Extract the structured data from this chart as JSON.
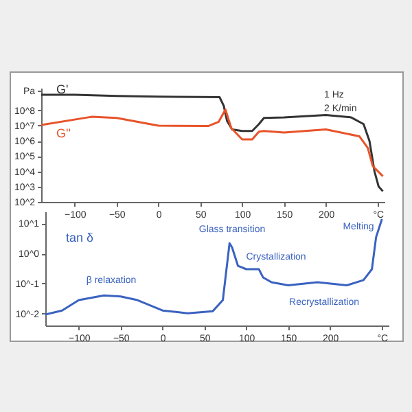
{
  "chart_data": [
    {
      "type": "line",
      "log": "y",
      "grid": false,
      "xlim": [
        -140,
        270
      ],
      "xticks": [
        -100,
        -50,
        0,
        50,
        100,
        150,
        200,
        {
          "value": 262,
          "label": "°C"
        }
      ],
      "ylim": [
        100,
        3000000000
      ],
      "yticks": [
        {
          "value": 100,
          "label": "10^2"
        },
        {
          "value": 1000,
          "label": "10^3"
        },
        {
          "value": 10000,
          "label": "10^4"
        },
        {
          "value": 100000,
          "label": "10^5"
        },
        {
          "value": 1000000,
          "label": "10^6"
        },
        {
          "value": 10000000,
          "label": "10^7"
        },
        {
          "value": 100000000,
          "label": "10^8"
        },
        {
          "value": 2000000000,
          "label": "Pa"
        }
      ],
      "annotations": [
        "1 Hz",
        "2 K/min"
      ],
      "x": [
        -140,
        -100,
        -50,
        0,
        50,
        73,
        78,
        82,
        88,
        100,
        112,
        120,
        126,
        150,
        200,
        230,
        245,
        252,
        258,
        263,
        268
      ],
      "series": [
        {
          "name": "G'",
          "color": "#333333",
          "values": [
            1070000000,
            1050000000,
            890000000,
            800000000,
            760000000,
            740000000,
            200000000,
            20000000,
            5600000,
            4500000,
            4500000,
            12600000,
            32000000,
            35000000,
            50000000,
            35000000,
            12600000,
            1000000,
            10000,
            1000,
            500
          ]
        },
        {
          "name": "G''",
          "color": "#e8532a",
          "x": [
            -140,
            -80,
            -50,
            0,
            60,
            72,
            80,
            87,
            100,
            112,
            120,
            126,
            150,
            200,
            240,
            250,
            256,
            268
          ],
          "values": [
            11000000,
            38000000,
            32000000,
            10000000,
            9500000,
            18000000,
            115000000,
            7000000,
            1260000,
            1260000,
            4000000,
            4500000,
            3500000,
            5600000,
            2000000,
            350000,
            22000,
            4800
          ]
        }
      ]
    },
    {
      "type": "line",
      "log": "y",
      "grid": false,
      "xlim": [
        -140,
        270
      ],
      "xticks": [
        -100,
        -50,
        0,
        50,
        100,
        150,
        200,
        {
          "value": 262,
          "label": "°C"
        }
      ],
      "ylim": [
        0.004,
        25
      ],
      "yticks": [
        {
          "value": 0.01,
          "label": "10^-2"
        },
        {
          "value": 0.1,
          "label": "10^-1"
        },
        {
          "value": 1,
          "label": "10^0"
        },
        {
          "value": 10,
          "label": "10^1"
        }
      ],
      "annotations": [
        "β relaxation",
        "Glass transition",
        "Crystallization",
        "Recrystallization",
        "Melting"
      ],
      "x": [
        -140,
        -120,
        -100,
        -70,
        -50,
        -30,
        0,
        30,
        60,
        72,
        80,
        83,
        90,
        100,
        115,
        120,
        130,
        150,
        185,
        220,
        240,
        250,
        255,
        262
      ],
      "series": [
        {
          "name": "tan δ",
          "color": "#3a62c0",
          "values": [
            0.0093,
            0.0126,
            0.028,
            0.04,
            0.037,
            0.028,
            0.0126,
            0.0102,
            0.012,
            0.028,
            2.2,
            1.6,
            0.39,
            0.3,
            0.3,
            0.16,
            0.11,
            0.087,
            0.11,
            0.087,
            0.13,
            0.3,
            3.5,
            14
          ]
        }
      ]
    }
  ]
}
